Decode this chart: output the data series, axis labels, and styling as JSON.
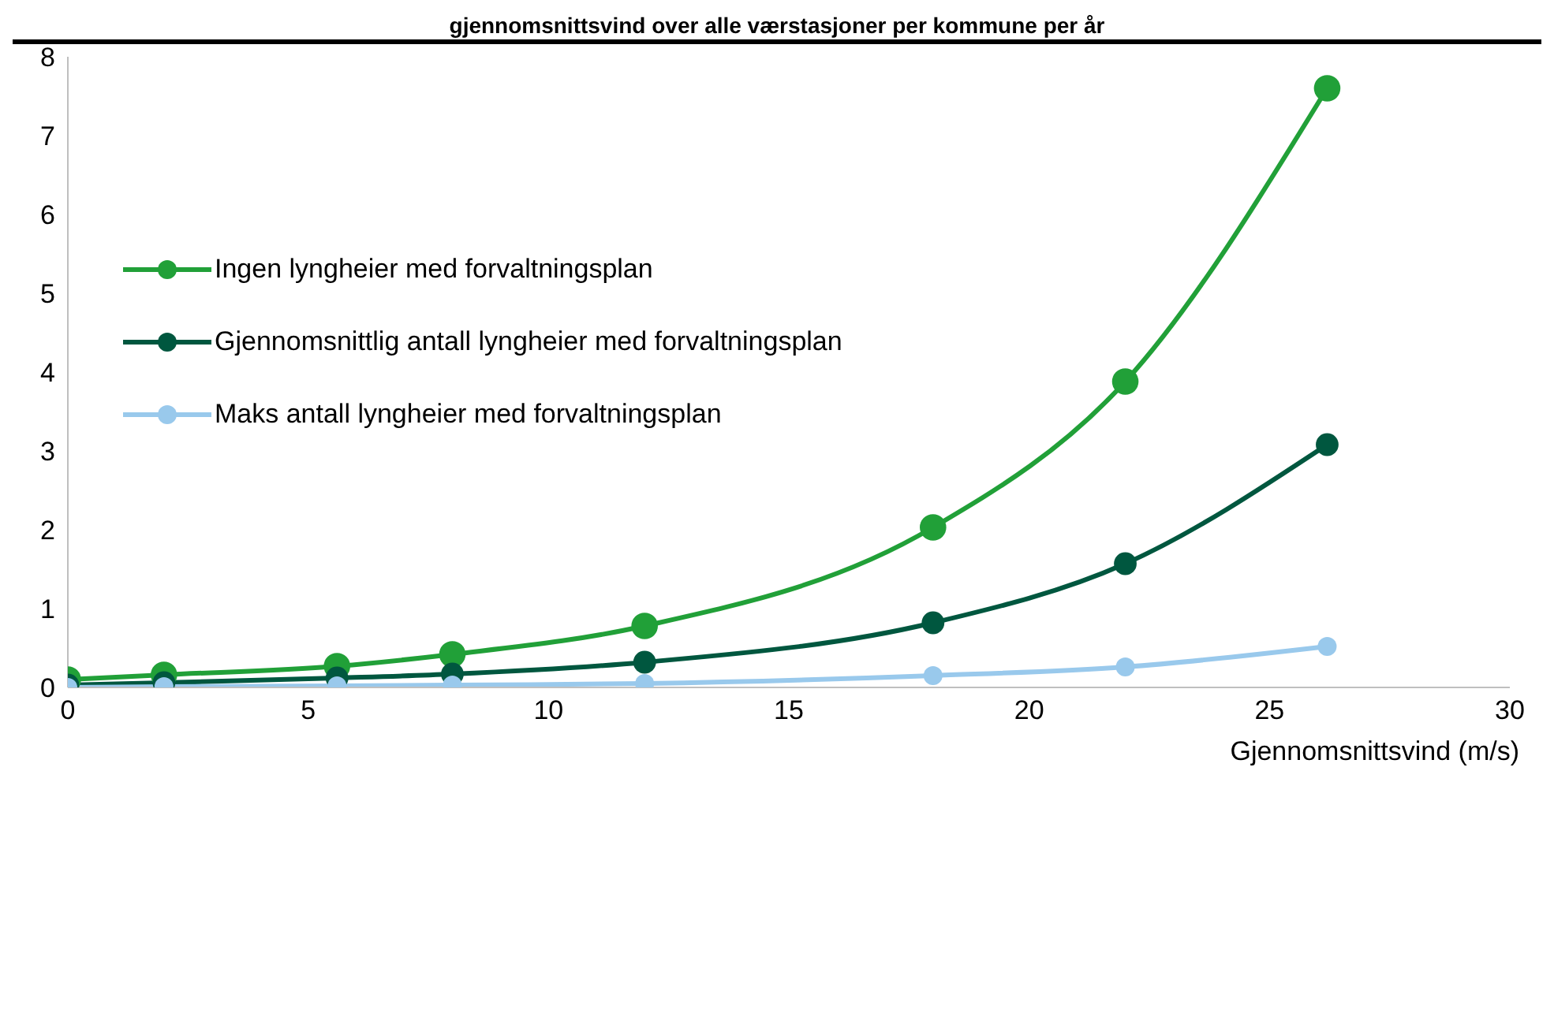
{
  "chart_data": {
    "type": "line",
    "title": "gjennomsnittsvind over alle værstasjoner per kommune per år",
    "xlabel": "Gjennomsnittsvind (m/s)",
    "x": [
      0,
      2,
      5.6,
      8,
      12,
      18,
      22,
      26.2
    ],
    "series": [
      {
        "name": "Ingen lyngheier med forvaltningsplan",
        "color": "#21a038",
        "values": [
          0.1,
          0.16,
          0.27,
          0.42,
          0.78,
          2.03,
          3.88,
          7.6
        ]
      },
      {
        "name": "Gjennomsnittlig antall lyngheier med forvaltningsplan",
        "color": "#00573f",
        "values": [
          0.03,
          0.06,
          0.12,
          0.17,
          0.32,
          0.82,
          1.57,
          3.08
        ]
      },
      {
        "name": "Maks antall lyngheier med forvaltningsplan",
        "color": "#99c9ec",
        "values": [
          0,
          0.01,
          0.02,
          0.03,
          0.05,
          0.15,
          0.26,
          0.52
        ]
      }
    ],
    "xlim": [
      0,
      30
    ],
    "xticks": [
      0,
      5,
      10,
      15,
      20,
      25,
      30
    ],
    "ylim": [
      0,
      8
    ],
    "yticks": [
      0,
      1,
      2,
      3,
      4,
      5,
      6,
      7,
      8
    ],
    "grid": false,
    "legend": "top left",
    "marker": "circle",
    "line_style": "solid"
  }
}
